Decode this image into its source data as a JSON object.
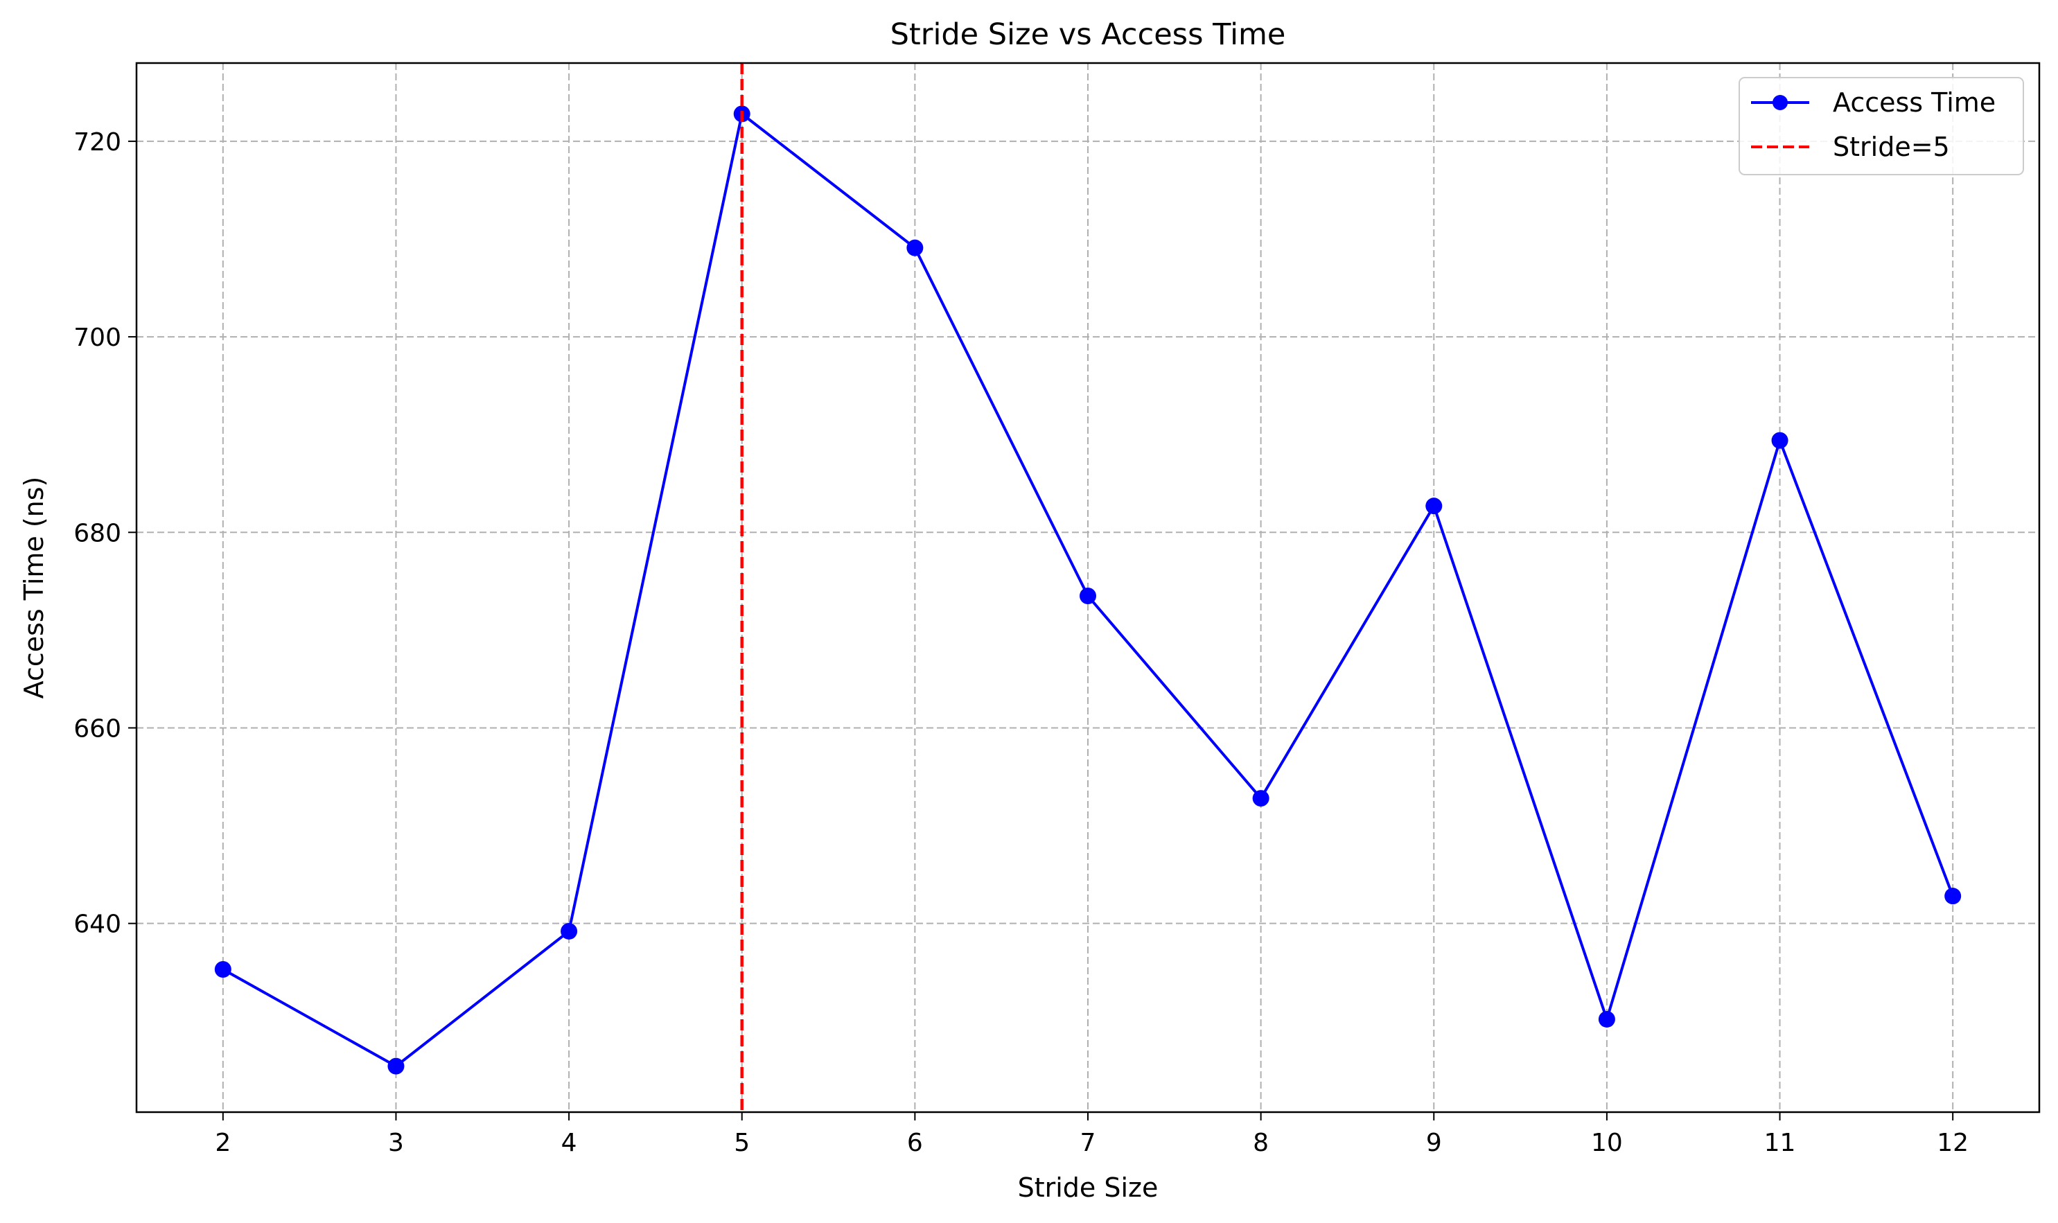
{
  "chart_data": {
    "type": "line",
    "title": "Stride Size vs Access Time",
    "xlabel": "Stride Size",
    "ylabel": "Access Time (ns)",
    "x": [
      2,
      3,
      4,
      5,
      6,
      7,
      8,
      9,
      10,
      11,
      12
    ],
    "series": [
      {
        "name": "Access Time",
        "color": "#0000ff",
        "marker": "circle",
        "values": [
          635.3,
          625.4,
          639.2,
          722.8,
          709.1,
          673.5,
          652.8,
          682.7,
          630.2,
          689.4,
          642.8
        ]
      }
    ],
    "reference_line": {
      "name": "Stride=5",
      "x": 5,
      "color": "#ff0000",
      "style": "dashed"
    },
    "xlim": [
      1.5,
      12.5
    ],
    "ylim": [
      620.7,
      728.0
    ],
    "xticks": [
      2,
      3,
      4,
      5,
      6,
      7,
      8,
      9,
      10,
      11,
      12
    ],
    "yticks": [
      640,
      660,
      680,
      700,
      720
    ],
    "grid": true,
    "legend_position": "top-right"
  }
}
